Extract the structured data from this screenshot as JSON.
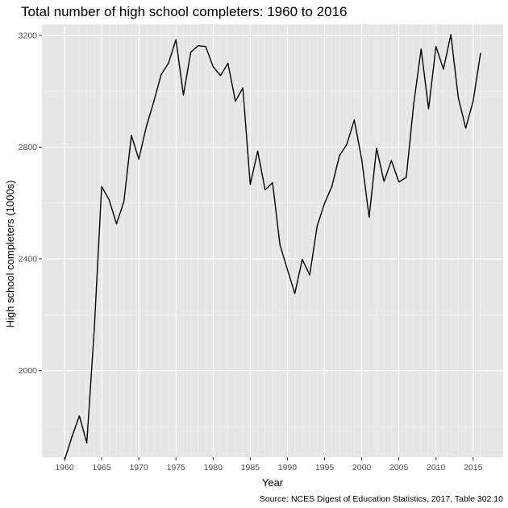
{
  "chart_data": {
    "type": "line",
    "title": "Total number of high school completers: 1960 to 2016",
    "xlabel": "Year",
    "ylabel": "High school completers (1000s)",
    "caption": "Source: NCES Digest of Education Statistics, 2017, Table 302.10",
    "xlim": [
      1960,
      2016
    ],
    "ylim": [
      1690,
      3240
    ],
    "x_ticks": [
      1960,
      1965,
      1970,
      1975,
      1980,
      1985,
      1990,
      1995,
      2000,
      2005,
      2010,
      2015
    ],
    "y_ticks": [
      2000,
      2400,
      2800,
      3200
    ],
    "grid": true,
    "x": [
      1960,
      1961,
      1962,
      1963,
      1964,
      1965,
      1966,
      1967,
      1968,
      1969,
      1970,
      1971,
      1972,
      1973,
      1974,
      1975,
      1976,
      1977,
      1978,
      1979,
      1980,
      1981,
      1982,
      1983,
      1984,
      1985,
      1986,
      1987,
      1988,
      1989,
      1990,
      1991,
      1992,
      1993,
      1994,
      1995,
      1996,
      1997,
      1998,
      1999,
      2000,
      2001,
      2002,
      2003,
      2004,
      2005,
      2006,
      2007,
      2008,
      2009,
      2010,
      2011,
      2012,
      2013,
      2014,
      2015,
      2016
    ],
    "series": [
      {
        "values": [
          1679,
          1763,
          1838,
          1741,
          2145,
          2659,
          2612,
          2525,
          2606,
          2842,
          2757,
          2872,
          2961,
          3059,
          3101,
          3185,
          2986,
          3140,
          3163,
          3160,
          3088,
          3056,
          3100,
          2964,
          3012,
          2666,
          2786,
          2647,
          2673,
          2450,
          2362,
          2276,
          2398,
          2342,
          2517,
          2599,
          2660,
          2769,
          2810,
          2897,
          2756,
          2549,
          2796,
          2677,
          2752,
          2675,
          2692,
          2955,
          3151,
          2937,
          3160,
          3079,
          3203,
          2977,
          2868,
          2965,
          3137
        ]
      }
    ],
    "colors": {
      "panel": "#e6e6e6",
      "grid_major": "#ffffff",
      "grid_minor": "#f2f2f2",
      "line": "#000000"
    }
  }
}
